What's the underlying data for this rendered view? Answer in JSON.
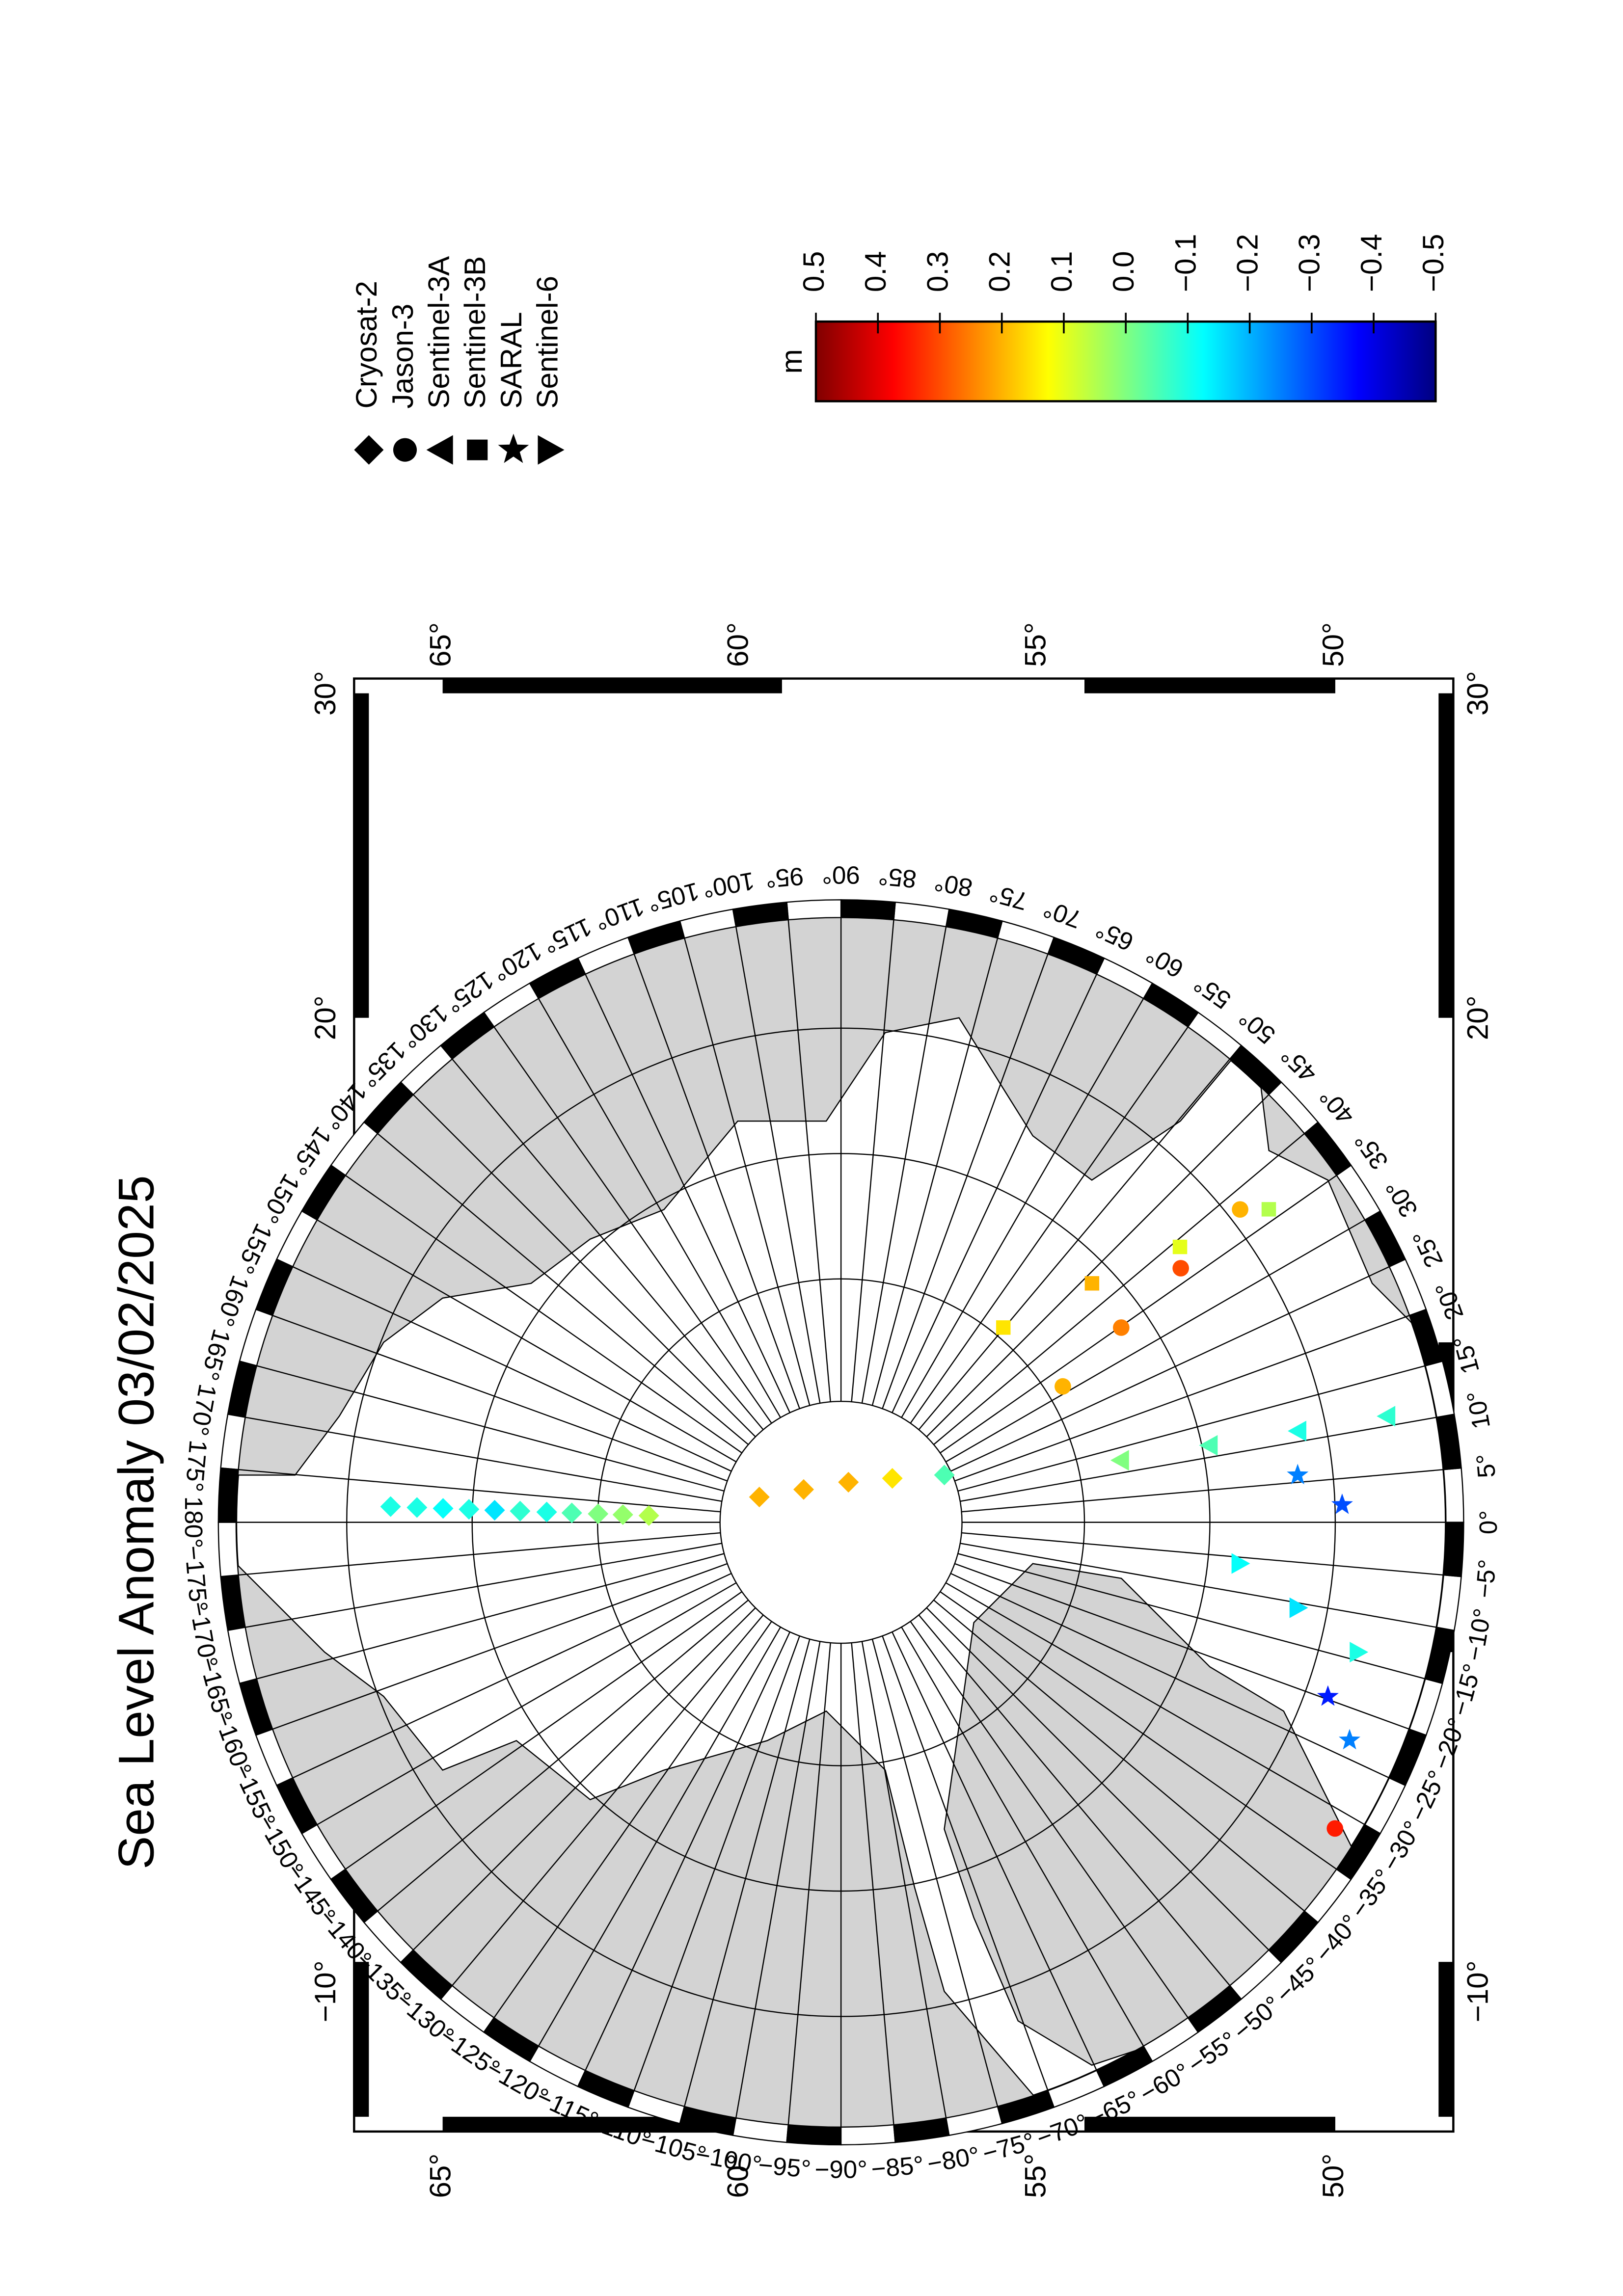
{
  "chart_data": {
    "type": "polar-map",
    "title": "Sea Level Anomaly 03/02/2025",
    "colormap": "jet",
    "clim": [
      -0.5,
      0.5
    ],
    "colorbar_label": "m",
    "colorbar_ticks": [
      0.5,
      0.4,
      0.3,
      0.2,
      0.1,
      {
        "value": 0,
        "label": "0.0"
      },
      {
        "value": -0.1,
        "label": "−0.1"
      },
      {
        "value": -0.2,
        "label": "−0.2"
      },
      {
        "value": -0.3,
        "label": "−0.3"
      },
      {
        "value": -0.4,
        "label": "−0.4"
      },
      {
        "value": -0.5,
        "label": "−0.5"
      }
    ],
    "frame_lat_ticks": [
      {
        "value": 65,
        "label": "65°"
      },
      {
        "value": 60,
        "label": "60°"
      },
      {
        "value": 55,
        "label": "55°"
      },
      {
        "value": 50,
        "label": "50°"
      }
    ],
    "frame_lon_ticks": [
      {
        "value": 30,
        "label": "30°"
      },
      {
        "value": 20,
        "label": "20°"
      },
      {
        "value": -10,
        "label": "−10°"
      }
    ],
    "lon_ticks": [
      {
        "value": -175,
        "label": "−175°"
      },
      {
        "value": -170,
        "label": "−170°"
      },
      {
        "value": -165,
        "label": "−165°"
      },
      {
        "value": -160,
        "label": "−160°"
      },
      {
        "value": -155,
        "label": "−155°"
      },
      {
        "value": -150,
        "label": "−150°"
      },
      {
        "value": -145,
        "label": "−145°"
      },
      {
        "value": -140,
        "label": "−140°"
      },
      {
        "value": -135,
        "label": "−135°"
      },
      {
        "value": -130,
        "label": "−130°"
      },
      {
        "value": -125,
        "label": "−125°"
      },
      {
        "value": -120,
        "label": "−120°"
      },
      {
        "value": -115,
        "label": "−115°"
      },
      {
        "value": -110,
        "label": "−110°"
      },
      {
        "value": -105,
        "label": "−105°"
      },
      {
        "value": -100,
        "label": "−100°"
      },
      {
        "value": -95,
        "label": "−95°"
      },
      {
        "value": -90,
        "label": "−90°"
      },
      {
        "value": -85,
        "label": "−85°"
      },
      {
        "value": -80,
        "label": "−80°"
      },
      {
        "value": -75,
        "label": "−75°"
      },
      {
        "value": -70,
        "label": "−70°"
      },
      {
        "value": -65,
        "label": "−65°"
      },
      {
        "value": -60,
        "label": "−60°"
      },
      {
        "value": -55,
        "label": "−55°"
      },
      {
        "value": -50,
        "label": "−50°"
      },
      {
        "value": -45,
        "label": "−45°"
      },
      {
        "value": -40,
        "label": "−40°"
      },
      {
        "value": -35,
        "label": "−35°"
      },
      {
        "value": -30,
        "label": "−30°"
      },
      {
        "value": -25,
        "label": "−25°"
      },
      {
        "value": -20,
        "label": "−20°"
      },
      {
        "value": -15,
        "label": "−15°"
      },
      {
        "value": -10,
        "label": "−10°"
      },
      {
        "value": -5,
        "label": "−5°"
      },
      {
        "value": 0,
        "label": "0°"
      },
      {
        "value": 5,
        "label": "5°"
      },
      {
        "value": 10,
        "label": "10°"
      },
      {
        "value": 15,
        "label": "15°"
      },
      {
        "value": 20,
        "label": "20°"
      },
      {
        "value": 25,
        "label": "25°"
      },
      {
        "value": 30,
        "label": "30°"
      },
      {
        "value": 35,
        "label": "35°"
      },
      {
        "value": 40,
        "label": "40°"
      },
      {
        "value": 45,
        "label": "45°"
      },
      {
        "value": 50,
        "label": "50°"
      },
      {
        "value": 55,
        "label": "55°"
      },
      {
        "value": 60,
        "label": "60°"
      },
      {
        "value": 65,
        "label": "65°"
      },
      {
        "value": 70,
        "label": "70°"
      },
      {
        "value": 75,
        "label": "75°"
      },
      {
        "value": 80,
        "label": "80°"
      },
      {
        "value": 85,
        "label": "85°"
      },
      {
        "value": 90,
        "label": "90°"
      },
      {
        "value": 95,
        "label": "95°"
      },
      {
        "value": 100,
        "label": "100°"
      },
      {
        "value": 105,
        "label": "105°"
      },
      {
        "value": 110,
        "label": "110°"
      },
      {
        "value": 115,
        "label": "115°"
      },
      {
        "value": 120,
        "label": "120°"
      },
      {
        "value": 125,
        "label": "125°"
      },
      {
        "value": 130,
        "label": "130°"
      },
      {
        "value": 135,
        "label": "135°"
      },
      {
        "value": 140,
        "label": "140°"
      },
      {
        "value": 145,
        "label": "145°"
      },
      {
        "value": 150,
        "label": "150°"
      },
      {
        "value": 155,
        "label": "155°"
      },
      {
        "value": 160,
        "label": "160°"
      },
      {
        "value": 165,
        "label": "165°"
      },
      {
        "value": 170,
        "label": "170°"
      },
      {
        "value": 175,
        "label": "175°"
      },
      {
        "value": 180,
        "label": "180°"
      }
    ],
    "series": [
      {
        "name": "Cryosat-2",
        "marker": "diamond",
        "lon": [
          178,
          178,
          178,
          178,
          178,
          178,
          178,
          178,
          178,
          178,
          178,
          162.8,
          138.7,
          79.5,
          40.6,
          24.6
        ],
        "lat": [
          55.7,
          57.6,
          59.5,
          61.4,
          63.3,
          65.2,
          67.2,
          69.1,
          71.1,
          73,
          75,
          83.3,
          86.1,
          86.8,
          84.7,
          81.1
        ],
        "values": [
          -0.1,
          -0.1,
          -0.12,
          -0.1,
          -0.15,
          -0.08,
          -0.1,
          -0.05,
          0,
          0.02,
          0.05,
          0.2,
          0.2,
          0.2,
          0.15,
          -0.05
        ]
      },
      {
        "name": "Jason-3",
        "marker": "circle",
        "lon": [
          31.5,
          34.8,
          36.8,
          38.1,
          -31.8
        ],
        "lat": [
          69.8,
          63.7,
          57.6,
          51.7,
          46.6
        ],
        "values": [
          0.2,
          0.25,
          0.3,
          0.2,
          0.35
        ]
      },
      {
        "name": "Sentinel-3A",
        "marker": "triangle-left",
        "lon": [
          12.5,
          11.8,
          11.3,
          11
        ],
        "lat": [
          67.8,
          61.1,
          54.6,
          48.3
        ],
        "values": [
          0,
          -0.05,
          -0.1,
          -0.08
        ]
      },
      {
        "name": "Sentinel-3B",
        "marker": "square",
        "lon": [
          50.2,
          43.6,
          39.1,
          36.2
        ],
        "lat": [
          70.3,
          63.3,
          56.7,
          50.1
        ],
        "values": [
          0.15,
          0.2,
          0.1,
          0.05
        ]
      },
      {
        "name": "SARAL",
        "marker": "star",
        "lon": [
          5.9,
          2,
          -19.7,
          -23.2
        ],
        "lat": [
          55.1,
          52.1,
          51,
          48.5
        ],
        "values": [
          -0.25,
          -0.3,
          -0.35,
          -0.25
        ]
      },
      {
        "name": "Sentinel-6",
        "marker": "triangle-right",
        "lon": [
          -5.9,
          -10.6,
          -14.1
        ],
        "lat": [
          59.3,
          54.7,
          49.9
        ],
        "values": [
          -0.12,
          -0.15,
          -0.1
        ]
      }
    ]
  }
}
